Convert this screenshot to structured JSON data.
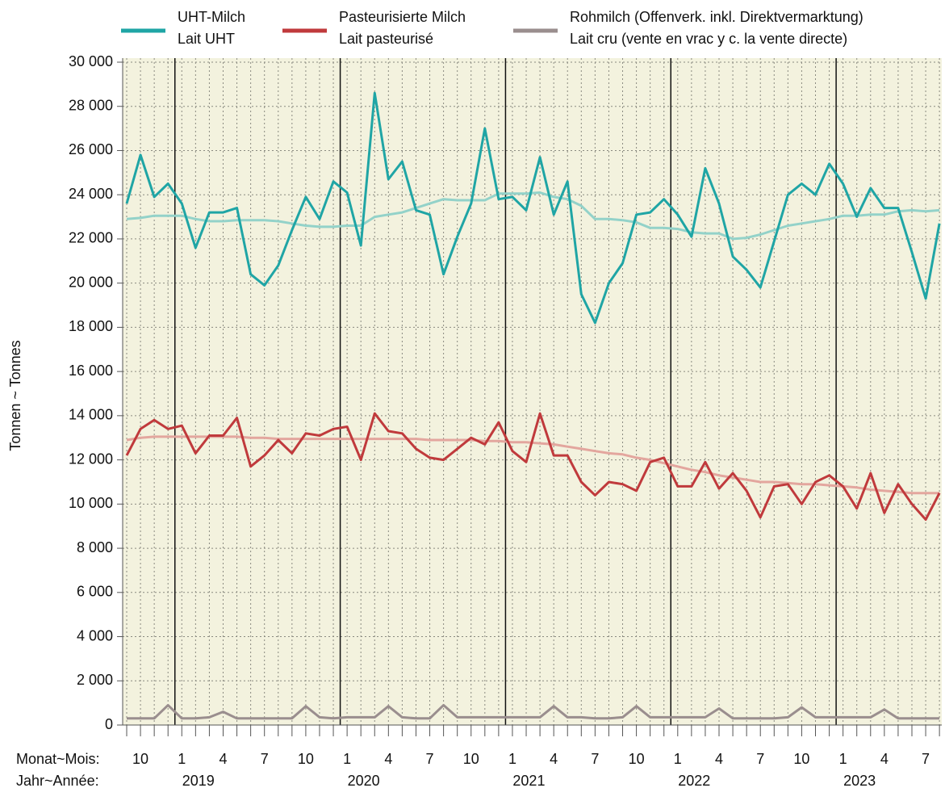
{
  "chart_data": {
    "type": "line",
    "y_label": "Tonnen  ~  Tonnes",
    "x_row_labels": [
      "Monat~Mois:",
      "Jahr~Année:"
    ],
    "categories": [
      null,
      "10",
      null,
      null,
      "1",
      null,
      null,
      "4",
      null,
      null,
      "7",
      null,
      null,
      "10",
      null,
      null,
      "1",
      null,
      null,
      "4",
      null,
      null,
      "7",
      null,
      null,
      "10",
      null,
      null,
      "1",
      null,
      null,
      "4",
      null,
      null,
      "7",
      null,
      null,
      "10",
      null,
      null,
      "1",
      null,
      null,
      "4",
      null,
      null,
      "7",
      null,
      null,
      "10",
      null,
      null,
      "1",
      null,
      null,
      "4",
      null,
      null,
      "7",
      null
    ],
    "years": [
      "2019",
      "2020",
      "2021",
      "2022",
      "2023"
    ],
    "ylim": [
      0,
      30000
    ],
    "yticks": [
      0,
      {
        "value": 2000,
        "label": "2 000"
      },
      {
        "value": 4000,
        "label": "4 000"
      },
      {
        "value": 6000,
        "label": "6 000"
      },
      {
        "value": 8000,
        "label": "8 000"
      },
      {
        "value": 10000,
        "label": "10 000"
      },
      {
        "value": 12000,
        "label": "12 000"
      },
      {
        "value": 14000,
        "label": "14 000"
      },
      {
        "value": 16000,
        "label": "16 000"
      },
      {
        "value": 18000,
        "label": "18 000"
      },
      {
        "value": 20000,
        "label": "20 000"
      },
      {
        "value": 22000,
        "label": "22 000"
      },
      {
        "value": 24000,
        "label": "24 000"
      },
      {
        "value": 26000,
        "label": "26 000"
      },
      {
        "value": 28000,
        "label": "28 000"
      },
      {
        "value": 30000,
        "label": "30 000"
      }
    ],
    "grid": true,
    "legend": "top",
    "series": [
      {
        "name": [
          "UHT-Milch",
          "Lait UHT"
        ],
        "color": "#1fa5a5",
        "trend_color": "#93d2c9",
        "values": [
          23600,
          25800,
          23900,
          24500,
          23600,
          21600,
          23200,
          23200,
          23400,
          20400,
          19900,
          20800,
          22400,
          23900,
          22900,
          24600,
          24100,
          21700,
          28600,
          24700,
          25500,
          23300,
          23100,
          20400,
          22100,
          23600,
          27000,
          23800,
          23900,
          23300,
          25700,
          23100,
          24600,
          19500,
          18200,
          20000,
          20900,
          23100,
          23200,
          23800,
          23100,
          22100,
          25200,
          23600,
          21200,
          20600,
          19800,
          21900,
          24000,
          24500,
          24000,
          25400,
          24500,
          23000,
          24300,
          23400,
          23400,
          21400,
          19300,
          22700
        ],
        "trend": [
          22900,
          22950,
          23050,
          23050,
          23050,
          22900,
          22800,
          22800,
          22850,
          22850,
          22850,
          22800,
          22700,
          22600,
          22550,
          22550,
          22600,
          22600,
          23000,
          23100,
          23200,
          23400,
          23600,
          23800,
          23750,
          23750,
          23750,
          24050,
          24050,
          24050,
          24100,
          23900,
          23800,
          23500,
          22900,
          22900,
          22850,
          22750,
          22500,
          22500,
          22450,
          22300,
          22250,
          22250,
          22000,
          22050,
          22200,
          22400,
          22600,
          22700,
          22800,
          22900,
          23050,
          23050,
          23100,
          23100,
          23250,
          23300,
          23250,
          23300
        ]
      },
      {
        "name": [
          "Pasteurisierte Milch",
          "Lait pasteurisé"
        ],
        "color": "#c03a3c",
        "trend_color": "#e3a69e",
        "values": [
          12200,
          13400,
          13800,
          13400,
          13550,
          12300,
          13100,
          13100,
          13900,
          11700,
          12200,
          12900,
          12300,
          13200,
          13100,
          13400,
          13500,
          12000,
          14100,
          13300,
          13200,
          12500,
          12100,
          12000,
          12500,
          13000,
          12700,
          13700,
          12400,
          11900,
          14100,
          12200,
          12200,
          11000,
          10400,
          11000,
          10900,
          10600,
          11900,
          12100,
          10800,
          10800,
          11900,
          10700,
          11400,
          10600,
          9400,
          10800,
          10900,
          10000,
          11000,
          11300,
          10800,
          9800,
          11400,
          9600,
          10900,
          10000,
          9300,
          10500
        ],
        "trend": [
          12900,
          13000,
          13050,
          13050,
          13050,
          13050,
          13050,
          13050,
          13050,
          13000,
          13000,
          12950,
          12950,
          12950,
          12950,
          12950,
          12950,
          12950,
          12950,
          12950,
          12950,
          12950,
          12900,
          12900,
          12900,
          12900,
          12850,
          12850,
          12800,
          12800,
          12750,
          12700,
          12600,
          12500,
          12400,
          12300,
          12250,
          12100,
          12000,
          11850,
          11700,
          11550,
          11450,
          11300,
          11200,
          11100,
          11000,
          11000,
          10950,
          10900,
          10900,
          10850,
          10800,
          10750,
          10650,
          10600,
          10550,
          10500,
          10500,
          10500
        ]
      },
      {
        "name": [
          "Rohmilch (Offenverk. inkl. Direktvermarktung)",
          "Lait cru (vente en vrac y c. la vente directe)"
        ],
        "color": "#9a8e8e",
        "values": [
          300,
          300,
          300,
          900,
          300,
          300,
          350,
          600,
          300,
          300,
          300,
          300,
          300,
          850,
          350,
          300,
          350,
          350,
          350,
          850,
          350,
          300,
          300,
          900,
          350,
          350,
          350,
          350,
          350,
          350,
          350,
          850,
          350,
          350,
          300,
          300,
          350,
          850,
          350,
          350,
          350,
          350,
          350,
          750,
          300,
          300,
          300,
          300,
          350,
          800,
          350,
          350,
          350,
          350,
          350,
          700,
          300,
          300,
          300,
          300
        ]
      }
    ]
  }
}
